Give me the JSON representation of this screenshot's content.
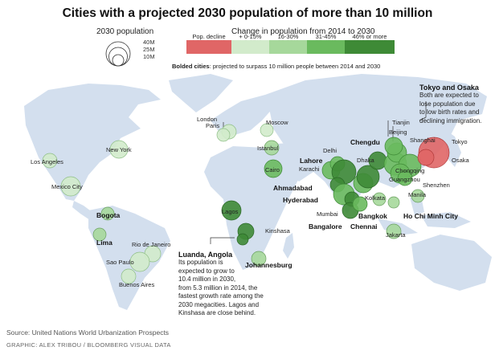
{
  "title": "Cities with a projected 2030 population of more than 10 million",
  "size_legend": {
    "title": "2030 population",
    "labels": [
      "40M",
      "25M",
      "10M"
    ]
  },
  "change_legend": {
    "title": "Change in population from 2014 to 2030",
    "bins": [
      {
        "label": "Pop. decline",
        "color": "#e06666"
      },
      {
        "label": "+ 0-15%",
        "color": "#d2ebcb"
      },
      {
        "label": "16-30%",
        "color": "#a6d89b"
      },
      {
        "label": "31-45%",
        "color": "#6aba5e"
      },
      {
        "label": "46% or more",
        "color": "#3e8a36"
      }
    ]
  },
  "bolded_note": {
    "bold": "Bolded cities",
    "rest": ": projected to surpass 10 million people between 2014 and 2030"
  },
  "cities": [
    {
      "name": "London",
      "bold": false
    },
    {
      "name": "Moscow",
      "bold": false
    },
    {
      "name": "Paris",
      "bold": false
    },
    {
      "name": "Istanbul",
      "bold": false
    },
    {
      "name": "Cairo",
      "bold": false
    },
    {
      "name": "New York",
      "bold": false
    },
    {
      "name": "Los Angeles",
      "bold": false
    },
    {
      "name": "Mexico City",
      "bold": false
    },
    {
      "name": "Bogota",
      "bold": true
    },
    {
      "name": "Lima",
      "bold": true
    },
    {
      "name": "Rio de Janeiro",
      "bold": false
    },
    {
      "name": "Sao Paulo",
      "bold": false
    },
    {
      "name": "Buenos Aires",
      "bold": false
    },
    {
      "name": "Lagos",
      "bold": false
    },
    {
      "name": "Kinshasa",
      "bold": false
    },
    {
      "name": "Johannesburg",
      "bold": true
    },
    {
      "name": "Delhi",
      "bold": false
    },
    {
      "name": "Karachi",
      "bold": false
    },
    {
      "name": "Lahore",
      "bold": true
    },
    {
      "name": "Ahmadabad",
      "bold": true
    },
    {
      "name": "Hyderabad",
      "bold": true
    },
    {
      "name": "Mumbai",
      "bold": false
    },
    {
      "name": "Bangalore",
      "bold": true
    },
    {
      "name": "Chennai",
      "bold": true
    },
    {
      "name": "Kolkata",
      "bold": false
    },
    {
      "name": "Dhaka",
      "bold": false
    },
    {
      "name": "Chengdu",
      "bold": true
    },
    {
      "name": "Chongqing",
      "bold": false
    },
    {
      "name": "Guangzhou",
      "bold": false
    },
    {
      "name": "Shenzhen",
      "bold": false
    },
    {
      "name": "Bangkok",
      "bold": true
    },
    {
      "name": "Ho Chi Minh City",
      "bold": true
    },
    {
      "name": "Manila",
      "bold": false
    },
    {
      "name": "Jakarta",
      "bold": false
    },
    {
      "name": "Tianjin",
      "bold": false
    },
    {
      "name": "Beijing",
      "bold": false
    },
    {
      "name": "Shanghai",
      "bold": false
    },
    {
      "name": "Tokyo",
      "bold": false
    },
    {
      "name": "Osaka",
      "bold": false
    }
  ],
  "annotations": {
    "tokyo": {
      "heading": "Tokyo and Osaka",
      "lines": [
        "Both are expected to",
        "lose population due",
        "to low birth rates and",
        "declining immigration."
      ]
    },
    "luanda": {
      "heading": "Luanda, Angola",
      "lines": [
        "Its population is",
        "expected to grow to",
        "10.4 million in 2030,",
        "from 5.3 million in 2014, the",
        "fastest growth rate among the",
        "2030 megacities. Lagos and",
        "Kinshasa are close behind."
      ]
    }
  },
  "source": "Source: United Nations World Urbanization Prospects",
  "credit": "GRAPHIC: ALEX TRIBOU / BLOOMBERG VISUAL DATA"
}
